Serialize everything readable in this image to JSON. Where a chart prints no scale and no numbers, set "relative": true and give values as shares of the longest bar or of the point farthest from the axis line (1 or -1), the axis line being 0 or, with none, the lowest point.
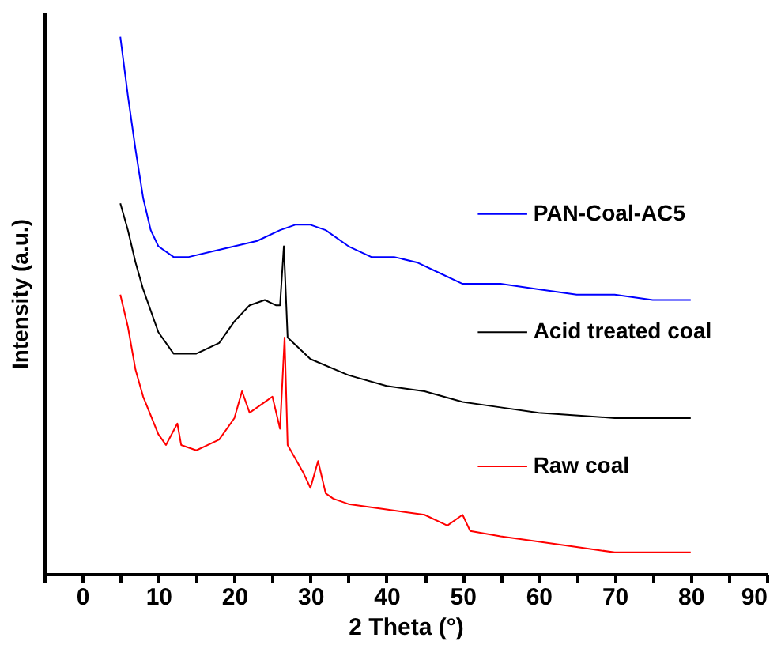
{
  "chart_data": {
    "type": "line",
    "relative": true,
    "xlabel": "2 Theta (°)",
    "ylabel": "Intensity (a.u.)",
    "xlim": [
      -5,
      90
    ],
    "legend": "right",
    "xticks": [
      {
        "value": -5,
        "label": null
      },
      0,
      {
        "value": 5,
        "label": null
      },
      10,
      {
        "value": 15,
        "label": null
      },
      20,
      {
        "value": 25,
        "label": null
      },
      30,
      {
        "value": 35,
        "label": null
      },
      40,
      {
        "value": 45,
        "label": null
      },
      50,
      {
        "value": 55,
        "label": null
      },
      60,
      {
        "value": 65,
        "label": null
      },
      70,
      {
        "value": 75,
        "label": null
      },
      80,
      {
        "value": 85,
        "label": null
      },
      90
    ],
    "series": [
      {
        "name": "PAN-Coal-AC5",
        "color": "#0000ff",
        "x": [
          5,
          6,
          7,
          8,
          9,
          10,
          12,
          14,
          17,
          20,
          23,
          26,
          28,
          30,
          32,
          35,
          38,
          41,
          44,
          47,
          50,
          55,
          60,
          65,
          70,
          75,
          80
        ],
        "values": [
          1.0,
          0.89,
          0.79,
          0.7,
          0.64,
          0.61,
          0.59,
          0.59,
          0.6,
          0.61,
          0.62,
          0.64,
          0.65,
          0.65,
          0.64,
          0.61,
          0.59,
          0.59,
          0.58,
          0.56,
          0.54,
          0.54,
          0.53,
          0.52,
          0.52,
          0.51,
          0.51
        ]
      },
      {
        "name": "Acid treated coal",
        "color": "#000000",
        "x": [
          5,
          6,
          7,
          8,
          10,
          12,
          15,
          18,
          20,
          22,
          24,
          25.5,
          26,
          26.5,
          27,
          30,
          35,
          40,
          45,
          50,
          55,
          60,
          70,
          80
        ],
        "values": [
          0.69,
          0.64,
          0.58,
          0.53,
          0.45,
          0.41,
          0.41,
          0.43,
          0.47,
          0.5,
          0.51,
          0.5,
          0.5,
          0.61,
          0.44,
          0.4,
          0.37,
          0.35,
          0.34,
          0.32,
          0.31,
          0.3,
          0.29,
          0.29
        ]
      },
      {
        "name": "Raw coal",
        "color": "#ff0000",
        "x": [
          5,
          6,
          7,
          8,
          10,
          11,
          12.5,
          13,
          15,
          18,
          20,
          21,
          22,
          24,
          25,
          26,
          26.6,
          27,
          29,
          30,
          31,
          32,
          33,
          35,
          40,
          45,
          48,
          50,
          51,
          55,
          60,
          65,
          70,
          80
        ],
        "values": [
          0.52,
          0.46,
          0.38,
          0.33,
          0.26,
          0.24,
          0.28,
          0.24,
          0.23,
          0.25,
          0.29,
          0.34,
          0.3,
          0.32,
          0.33,
          0.27,
          0.44,
          0.24,
          0.19,
          0.16,
          0.21,
          0.15,
          0.14,
          0.13,
          0.12,
          0.11,
          0.09,
          0.11,
          0.08,
          0.07,
          0.06,
          0.05,
          0.04,
          0.04
        ]
      }
    ]
  }
}
